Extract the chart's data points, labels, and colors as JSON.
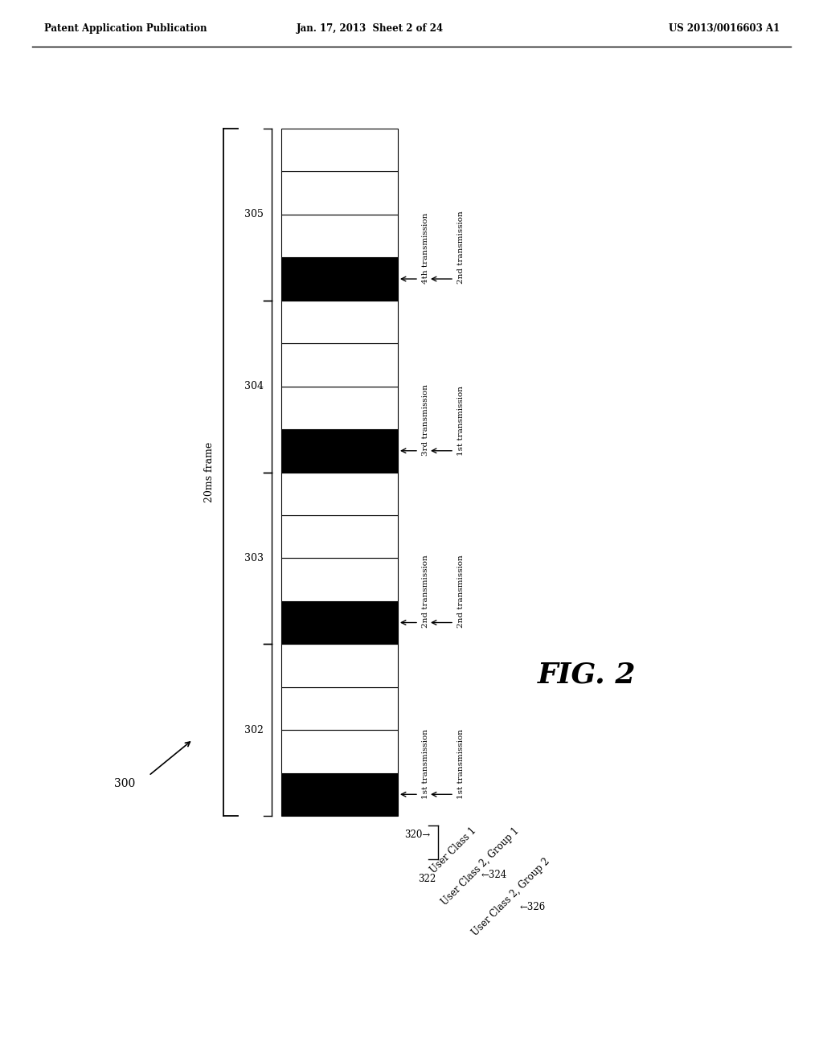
{
  "header_left": "Patent Application Publication",
  "header_mid": "Jan. 17, 2013  Sheet 2 of 24",
  "header_right": "US 2013/0016603 A1",
  "fig_label": "FIG. 2",
  "diagram_label": "300",
  "frame_label": "20ms frame",
  "subframe_labels": [
    "302",
    "303",
    "304",
    "305"
  ],
  "user_class1_label": "User Class 1",
  "user_class2_group1_label": "User Class 2, Group 1",
  "user_class2_group2_label": "User Class 2, Group 2",
  "ref_320": "320",
  "ref_322": "322",
  "ref_324": "324",
  "ref_326": "326",
  "transmission_labels_row1": [
    "1st transmission",
    "2nd transmission",
    "3rd transmission",
    "4th transmission"
  ],
  "transmission_labels_row2": [
    "1st transmission",
    "2nd transmission",
    "1st transmission",
    "2nd transmission"
  ],
  "background": "#ffffff",
  "black_color": "#000000",
  "white_color": "#ffffff"
}
